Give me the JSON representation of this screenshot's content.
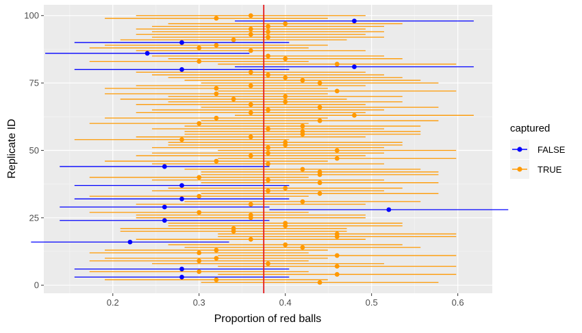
{
  "chart_data": {
    "type": "scatter",
    "xlabel": "Proportion of red balls",
    "ylabel": "Replicate ID",
    "xlim": [
      0.12,
      0.64
    ],
    "ylim": [
      -3,
      104
    ],
    "x_ticks": [
      0.2,
      0.3,
      0.4,
      0.5,
      0.6
    ],
    "x_tick_labels": [
      "0.2",
      "0.3",
      "0.4",
      "0.5",
      "0.6"
    ],
    "y_ticks": [
      0,
      25,
      50,
      75,
      100
    ],
    "y_tick_labels": [
      "0",
      "25",
      "50",
      "75",
      "100"
    ],
    "reference_line": {
      "x": 0.375,
      "color": "#e41a1c"
    },
    "grid": true,
    "legend": {
      "title": "captured",
      "position": "right",
      "entries": [
        {
          "label": "FALSE",
          "color": "#0000ff"
        },
        {
          "label": "TRUE",
          "color": "#ff9900"
        }
      ]
    },
    "series_colors": {
      "FALSE": "#0000ff",
      "TRUE": "#ff9900"
    },
    "series": [
      {
        "id": 1,
        "est": 0.44,
        "captured": true
      },
      {
        "id": 2,
        "est": 0.32,
        "captured": true
      },
      {
        "id": 3,
        "est": 0.28,
        "captured": false
      },
      {
        "id": 4,
        "est": 0.46,
        "captured": true
      },
      {
        "id": 5,
        "est": 0.3,
        "captured": true
      },
      {
        "id": 6,
        "est": 0.28,
        "captured": false
      },
      {
        "id": 7,
        "est": 0.46,
        "captured": true
      },
      {
        "id": 8,
        "est": 0.38,
        "captured": true
      },
      {
        "id": 9,
        "est": 0.3,
        "captured": true
      },
      {
        "id": 10,
        "est": 0.32,
        "captured": true
      },
      {
        "id": 11,
        "est": 0.46,
        "captured": true
      },
      {
        "id": 12,
        "est": 0.3,
        "captured": true
      },
      {
        "id": 13,
        "est": 0.32,
        "captured": true
      },
      {
        "id": 14,
        "est": 0.42,
        "captured": true
      },
      {
        "id": 15,
        "est": 0.4,
        "captured": true
      },
      {
        "id": 16,
        "est": 0.22,
        "captured": false
      },
      {
        "id": 17,
        "est": 0.36,
        "captured": true
      },
      {
        "id": 18,
        "est": 0.46,
        "captured": true
      },
      {
        "id": 19,
        "est": 0.46,
        "captured": true
      },
      {
        "id": 20,
        "est": 0.34,
        "captured": true
      },
      {
        "id": 21,
        "est": 0.34,
        "captured": true
      },
      {
        "id": 22,
        "est": 0.4,
        "captured": true
      },
      {
        "id": 23,
        "est": 0.4,
        "captured": true
      },
      {
        "id": 24,
        "est": 0.26,
        "captured": false
      },
      {
        "id": 25,
        "est": 0.36,
        "captured": true
      },
      {
        "id": 26,
        "est": 0.36,
        "captured": true
      },
      {
        "id": 27,
        "est": 0.3,
        "captured": true
      },
      {
        "id": 28,
        "est": 0.52,
        "captured": false
      },
      {
        "id": 29,
        "est": 0.26,
        "captured": false
      },
      {
        "id": 30,
        "est": 0.36,
        "captured": true
      },
      {
        "id": 31,
        "est": 0.42,
        "captured": true
      },
      {
        "id": 32,
        "est": 0.28,
        "captured": false
      },
      {
        "id": 33,
        "est": 0.3,
        "captured": true
      },
      {
        "id": 34,
        "est": 0.44,
        "captured": true
      },
      {
        "id": 35,
        "est": 0.38,
        "captured": true
      },
      {
        "id": 36,
        "est": 0.4,
        "captured": true
      },
      {
        "id": 37,
        "est": 0.28,
        "captured": false
      },
      {
        "id": 38,
        "est": 0.44,
        "captured": true
      },
      {
        "id": 39,
        "est": 0.38,
        "captured": true
      },
      {
        "id": 40,
        "est": 0.3,
        "captured": true
      },
      {
        "id": 41,
        "est": 0.44,
        "captured": true
      },
      {
        "id": 42,
        "est": 0.44,
        "captured": true
      },
      {
        "id": 43,
        "est": 0.42,
        "captured": true
      },
      {
        "id": 44,
        "est": 0.26,
        "captured": false
      },
      {
        "id": 45,
        "est": 0.38,
        "captured": true
      },
      {
        "id": 46,
        "est": 0.32,
        "captured": true
      },
      {
        "id": 47,
        "est": 0.46,
        "captured": true
      },
      {
        "id": 48,
        "est": 0.36,
        "captured": true
      },
      {
        "id": 49,
        "est": 0.38,
        "captured": true
      },
      {
        "id": 50,
        "est": 0.46,
        "captured": true
      },
      {
        "id": 51,
        "est": 0.38,
        "captured": true
      },
      {
        "id": 52,
        "est": 0.4,
        "captured": true
      },
      {
        "id": 53,
        "est": 0.4,
        "captured": true
      },
      {
        "id": 54,
        "est": 0.28,
        "captured": true
      },
      {
        "id": 55,
        "est": 0.36,
        "captured": true
      },
      {
        "id": 56,
        "est": 0.42,
        "captured": true
      },
      {
        "id": 57,
        "est": 0.42,
        "captured": true
      },
      {
        "id": 58,
        "est": 0.38,
        "captured": true
      },
      {
        "id": 59,
        "est": 0.42,
        "captured": true
      },
      {
        "id": 60,
        "est": 0.3,
        "captured": true
      },
      {
        "id": 61,
        "est": 0.44,
        "captured": true
      },
      {
        "id": 62,
        "est": 0.32,
        "captured": true
      },
      {
        "id": 63,
        "est": 0.48,
        "captured": true
      },
      {
        "id": 64,
        "est": 0.36,
        "captured": true
      },
      {
        "id": 65,
        "est": 0.38,
        "captured": true
      },
      {
        "id": 66,
        "est": 0.44,
        "captured": true
      },
      {
        "id": 67,
        "est": 0.36,
        "captured": true
      },
      {
        "id": 68,
        "est": 0.4,
        "captured": true
      },
      {
        "id": 69,
        "est": 0.34,
        "captured": true
      },
      {
        "id": 70,
        "est": 0.4,
        "captured": true
      },
      {
        "id": 71,
        "est": 0.32,
        "captured": true
      },
      {
        "id": 72,
        "est": 0.46,
        "captured": true
      },
      {
        "id": 73,
        "est": 0.32,
        "captured": true
      },
      {
        "id": 74,
        "est": 0.36,
        "captured": true
      },
      {
        "id": 75,
        "est": 0.44,
        "captured": true
      },
      {
        "id": 76,
        "est": 0.42,
        "captured": true
      },
      {
        "id": 77,
        "est": 0.4,
        "captured": true
      },
      {
        "id": 78,
        "est": 0.38,
        "captured": true
      },
      {
        "id": 79,
        "est": 0.36,
        "captured": true
      },
      {
        "id": 80,
        "est": 0.28,
        "captured": false
      },
      {
        "id": 81,
        "est": 0.48,
        "captured": false
      },
      {
        "id": 82,
        "est": 0.46,
        "captured": true
      },
      {
        "id": 83,
        "est": 0.3,
        "captured": true
      },
      {
        "id": 84,
        "est": 0.4,
        "captured": true
      },
      {
        "id": 85,
        "est": 0.38,
        "captured": true
      },
      {
        "id": 86,
        "est": 0.24,
        "captured": false
      },
      {
        "id": 87,
        "est": 0.36,
        "captured": true
      },
      {
        "id": 88,
        "est": 0.3,
        "captured": true
      },
      {
        "id": 89,
        "est": 0.32,
        "captured": true
      },
      {
        "id": 90,
        "est": 0.28,
        "captured": false
      },
      {
        "id": 91,
        "est": 0.34,
        "captured": true
      },
      {
        "id": 92,
        "est": 0.38,
        "captured": true
      },
      {
        "id": 93,
        "est": 0.36,
        "captured": true
      },
      {
        "id": 94,
        "est": 0.38,
        "captured": true
      },
      {
        "id": 95,
        "est": 0.36,
        "captured": true
      },
      {
        "id": 96,
        "est": 0.38,
        "captured": true
      },
      {
        "id": 97,
        "est": 0.4,
        "captured": true
      },
      {
        "id": 98,
        "est": 0.48,
        "captured": false
      },
      {
        "id": 99,
        "est": 0.32,
        "captured": true
      },
      {
        "id": 100,
        "est": 0.36,
        "captured": true
      }
    ]
  }
}
